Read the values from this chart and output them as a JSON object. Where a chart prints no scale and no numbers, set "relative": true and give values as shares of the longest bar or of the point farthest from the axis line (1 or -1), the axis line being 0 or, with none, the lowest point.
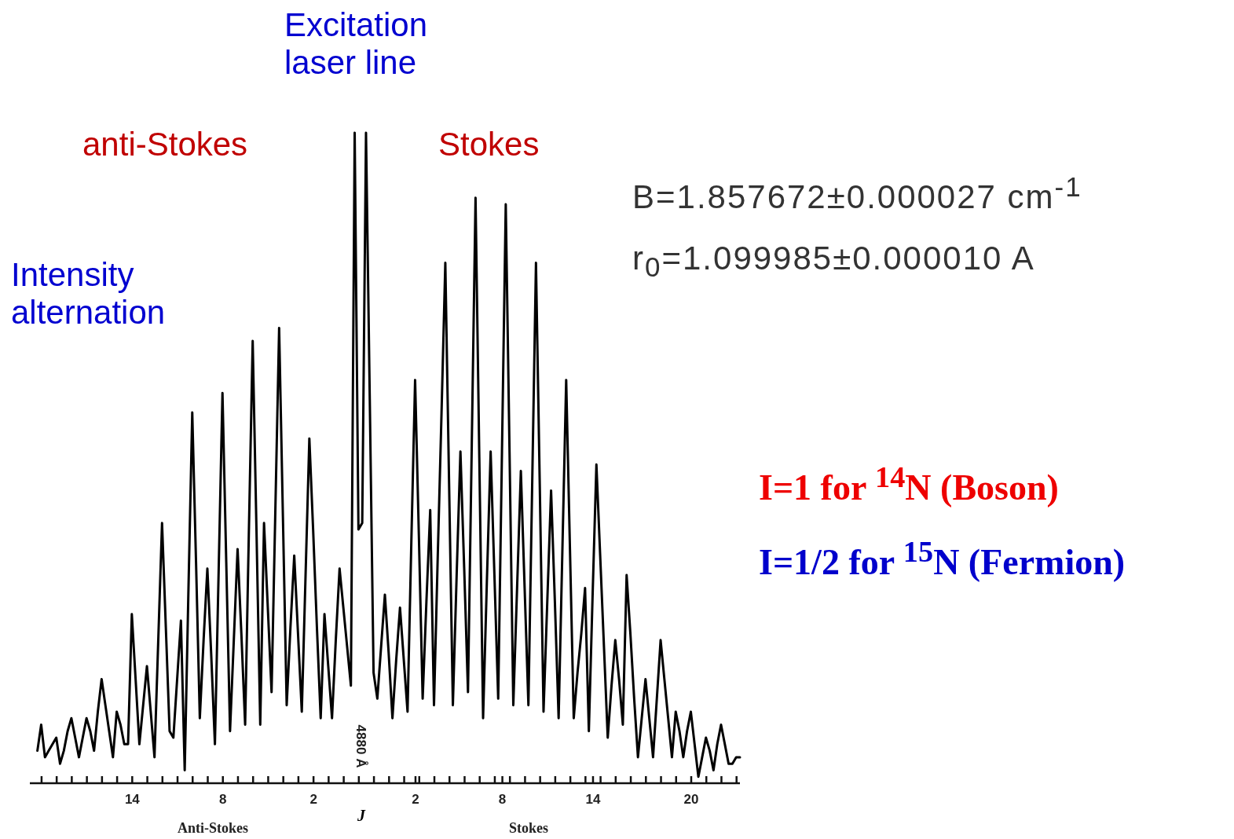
{
  "chart_data": {
    "type": "line",
    "relative": true,
    "xlabel": "J",
    "marker": "none",
    "line_style": "solid",
    "categories": [
      null,
      null,
      null,
      null,
      null,
      null,
      null,
      null,
      null,
      null,
      null,
      null,
      null,
      null,
      null,
      null,
      null,
      null,
      null,
      null,
      null,
      null,
      null,
      null,
      null,
      null,
      null,
      "14",
      null,
      null,
      null,
      null,
      null,
      null,
      null,
      null,
      null,
      null,
      null,
      null,
      null,
      null,
      null,
      null,
      null,
      null,
      null,
      null,
      null,
      null,
      null,
      "8",
      null,
      null,
      null,
      null,
      null,
      null,
      null,
      null,
      null,
      null,
      null,
      null,
      null,
      null,
      null,
      null,
      null,
      null,
      null,
      null,
      null,
      null,
      null,
      "2",
      null,
      null,
      null,
      null,
      null,
      null,
      null,
      null,
      null,
      null,
      null,
      null,
      null,
      null,
      null,
      null,
      null,
      null,
      null,
      null,
      null,
      null,
      null,
      null,
      null,
      null,
      "2",
      null,
      null,
      null,
      null,
      null,
      null,
      null,
      null,
      null,
      null,
      null,
      null,
      null,
      null,
      null,
      null,
      null,
      null,
      null,
      null,
      null,
      null,
      "8",
      null,
      null,
      null,
      null,
      null,
      null,
      null,
      null,
      null,
      null,
      null,
      null,
      null,
      null,
      null,
      null,
      null,
      null,
      null,
      null,
      null,
      null,
      null,
      "14",
      null,
      null,
      null,
      null,
      null,
      null,
      null,
      null,
      null,
      null,
      null,
      null,
      null,
      null,
      null,
      null,
      null,
      null,
      null,
      null,
      null,
      null,
      null,
      null,
      null,
      "20",
      null,
      null,
      null,
      null,
      null,
      null,
      null,
      null,
      null,
      null,
      null,
      null,
      null
    ],
    "annotations": [
      "Excitation laser line",
      "anti-Stokes",
      "Stokes",
      "Intensity alternation",
      "B=1.857672±0.000027 cm$^{-1}$",
      "r$_{0}$=1.099985±0.000010 A",
      "I=1 for $^{14}$N (Boson)",
      "I=1/2 for $^{15}$N (Fermion)",
      "4880 Å",
      "Anti-Stokes",
      "Stokes"
    ],
    "series": [
      {
        "color": "#000000",
        "values": [
          null,
          null,
          0.05,
          0.09,
          0.04,
          0.05,
          0.06,
          0.07,
          0.03,
          0.05,
          0.08,
          0.1,
          0.07,
          0.04,
          0.07,
          0.1,
          0.08,
          0.05,
          0.11,
          0.16,
          0.12,
          0.08,
          0.04,
          0.11,
          0.09,
          0.06,
          0.06,
          0.26,
          0.16,
          0.06,
          0.12,
          0.18,
          0.11,
          0.04,
          0.22,
          0.4,
          0.24,
          0.08,
          0.07,
          0.16,
          0.25,
          0.02,
          0.3,
          0.57,
          0.34,
          0.1,
          0.22,
          0.33,
          0.2,
          0.06,
          0.33,
          0.6,
          0.34,
          0.08,
          0.22,
          0.36,
          0.23,
          0.09,
          0.39,
          0.68,
          0.39,
          0.09,
          0.4,
          0.27,
          0.14,
          0.42,
          0.7,
          0.41,
          0.12,
          0.24,
          0.35,
          0.23,
          0.11,
          0.32,
          0.53,
          0.39,
          0.24,
          0.1,
          0.26,
          0.18,
          0.1,
          0.22,
          0.33,
          0.27,
          0.21,
          0.15,
          1.0,
          0.39,
          0.4,
          1.0,
          0.59,
          0.17,
          0.13,
          0.21,
          0.29,
          0.2,
          0.1,
          0.19,
          0.27,
          0.19,
          0.11,
          0.37,
          0.62,
          0.38,
          0.13,
          0.28,
          0.42,
          0.12,
          0.35,
          0.57,
          0.8,
          0.46,
          0.12,
          0.32,
          0.51,
          0.33,
          0.14,
          0.52,
          0.9,
          0.5,
          0.1,
          0.31,
          0.51,
          0.32,
          0.13,
          0.51,
          0.89,
          0.51,
          0.12,
          0.3,
          0.48,
          0.3,
          0.12,
          0.46,
          0.8,
          0.46,
          0.11,
          0.28,
          0.45,
          0.28,
          0.1,
          0.36,
          0.62,
          0.36,
          0.1,
          0.17,
          0.23,
          0.3,
          0.08,
          0.29,
          0.49,
          0.35,
          0.21,
          0.07,
          0.15,
          0.22,
          0.16,
          0.09,
          0.32,
          0.23,
          0.13,
          0.04,
          0.1,
          0.16,
          0.1,
          0.04,
          0.13,
          0.22,
          0.16,
          0.1,
          0.04,
          0.11,
          0.08,
          0.04,
          0.08,
          0.11,
          0.06,
          0.01,
          0.04,
          0.07,
          0.05,
          0.02,
          0.06,
          0.09,
          0.06,
          0.03,
          0.03,
          0.04,
          0.04
        ]
      }
    ]
  }
}
